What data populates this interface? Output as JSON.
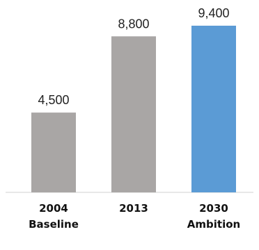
{
  "chart_data": {
    "type": "bar",
    "title": "",
    "xlabel": "",
    "ylabel": "",
    "categories": [
      [
        "2004",
        "Baseline"
      ],
      [
        "2013"
      ],
      [
        "2030",
        "Ambition"
      ]
    ],
    "values": [
      4500,
      8800,
      9400
    ],
    "value_labels": [
      "4,500",
      "8,800",
      "9,400"
    ],
    "colors": [
      "#a9a6a5",
      "#a9a6a5",
      "#5b9bd5"
    ],
    "ylim": [
      0,
      10000
    ],
    "grid": false,
    "legend": "none"
  }
}
